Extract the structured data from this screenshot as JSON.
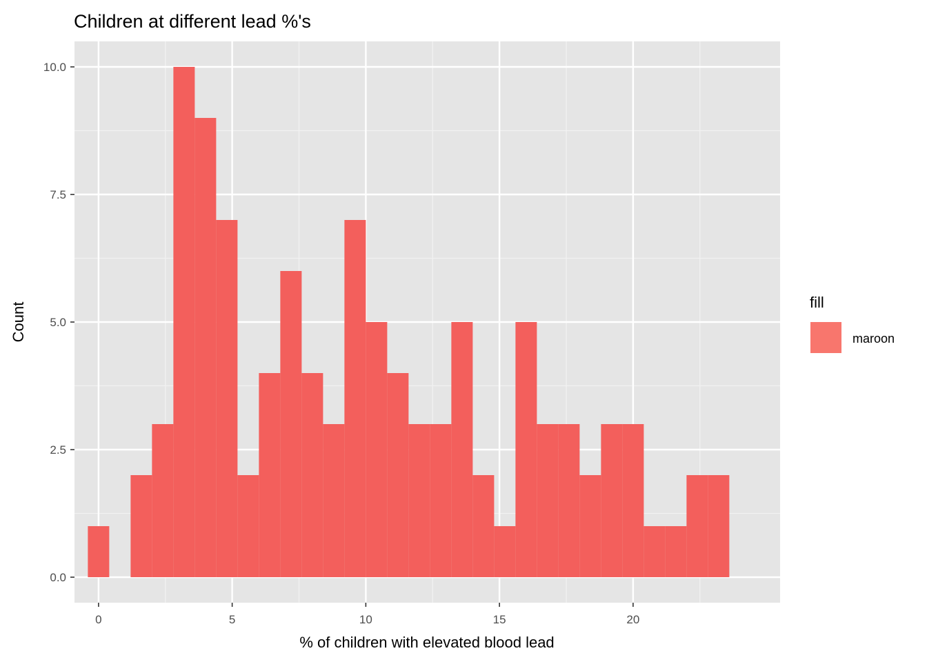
{
  "chart_data": {
    "type": "bar",
    "title": "Children at different lead %'s",
    "xlabel": "% of children with elevated blood lead",
    "ylabel": "Count",
    "xlim": [
      -0.9,
      25.5
    ],
    "ylim": [
      -0.5,
      10.5
    ],
    "x_ticks": [
      0,
      5,
      10,
      15,
      20
    ],
    "x_tick_labels": [
      "0",
      "5",
      "10",
      "15",
      "20"
    ],
    "y_ticks": [
      0,
      2.5,
      5,
      7.5,
      10
    ],
    "y_tick_labels": [
      "0.0",
      "2.5",
      "5.0",
      "7.5",
      "10.0"
    ],
    "bin_width": 0.8,
    "bin_centers": [
      0,
      0.8,
      1.6,
      2.4,
      3.2,
      4.0,
      4.8,
      5.6,
      6.4,
      7.2,
      8.0,
      8.8,
      9.6,
      10.4,
      11.2,
      12.0,
      12.8,
      13.6,
      14.4,
      15.2,
      16.0,
      16.8,
      17.6,
      18.4,
      19.2,
      20.0,
      20.8,
      21.6,
      22.4,
      23.2
    ],
    "values": [
      1,
      0,
      2,
      3,
      10,
      9,
      7,
      2,
      4,
      6,
      4,
      3,
      7,
      5,
      4,
      3,
      3,
      5,
      2,
      1,
      5,
      3,
      3,
      2,
      3,
      3,
      1,
      1,
      2,
      2
    ],
    "grid": true,
    "legend": {
      "title": "fill",
      "placement": "right",
      "items": [
        {
          "label": "maroon",
          "color": "#F8766D"
        }
      ]
    },
    "colors": {
      "bar": "#F35F5C",
      "panel": "#E5E5E5",
      "grid_major": "#FFFFFF",
      "grid_minor": "#F2F2F2"
    }
  }
}
